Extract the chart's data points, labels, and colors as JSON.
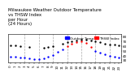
{
  "title": "Milwaukee Weather Outdoor Temperature\nvs THSW Index\nper Hour\n(24 Hours)",
  "bg_color": "#ffffff",
  "plot_bg": "#ffffff",
  "grid_color": "#aaaaaa",
  "xlim": [
    -0.5,
    23.5
  ],
  "ylim": [
    25,
    85
  ],
  "ytick_vals": [
    30,
    40,
    50,
    60,
    70,
    80
  ],
  "xtick_vals": [
    0,
    1,
    2,
    3,
    4,
    5,
    6,
    7,
    8,
    9,
    10,
    11,
    12,
    13,
    14,
    15,
    16,
    17,
    18,
    19,
    20,
    21,
    22,
    23
  ],
  "temp_hours": [
    0,
    1,
    2,
    4,
    7,
    8,
    9,
    11,
    12,
    13,
    14,
    15,
    16,
    17,
    18,
    19,
    20,
    21,
    22,
    23
  ],
  "temp_vals": [
    62,
    61,
    60,
    58,
    57,
    58,
    60,
    65,
    68,
    70,
    72,
    74,
    73,
    72,
    70,
    68,
    65,
    64,
    63,
    62
  ],
  "thsw_hours_blue": [
    0,
    1,
    2,
    3,
    4,
    5,
    6,
    7,
    8,
    9,
    10,
    11,
    18,
    19,
    20,
    21,
    22,
    23
  ],
  "thsw_vals_blue": [
    38,
    37,
    36,
    35,
    34,
    33,
    33,
    34,
    37,
    41,
    47,
    53,
    50,
    46,
    42,
    39,
    37,
    36
  ],
  "thsw_hours_red": [
    12,
    13,
    14,
    15,
    16,
    17
  ],
  "thsw_vals_red": [
    60,
    65,
    68,
    70,
    67,
    59
  ],
  "temp_color": "#000000",
  "thsw_color_low": "#0000ff",
  "thsw_color_high": "#ff0000",
  "vline_hours": [
    3,
    6,
    9,
    12,
    15,
    18,
    21
  ],
  "marker_size": 3,
  "title_fontsize": 4.0,
  "tick_fontsize": 3.0,
  "legend_blue_label": "Outdoor Temp",
  "legend_red_label": "THSW Index"
}
